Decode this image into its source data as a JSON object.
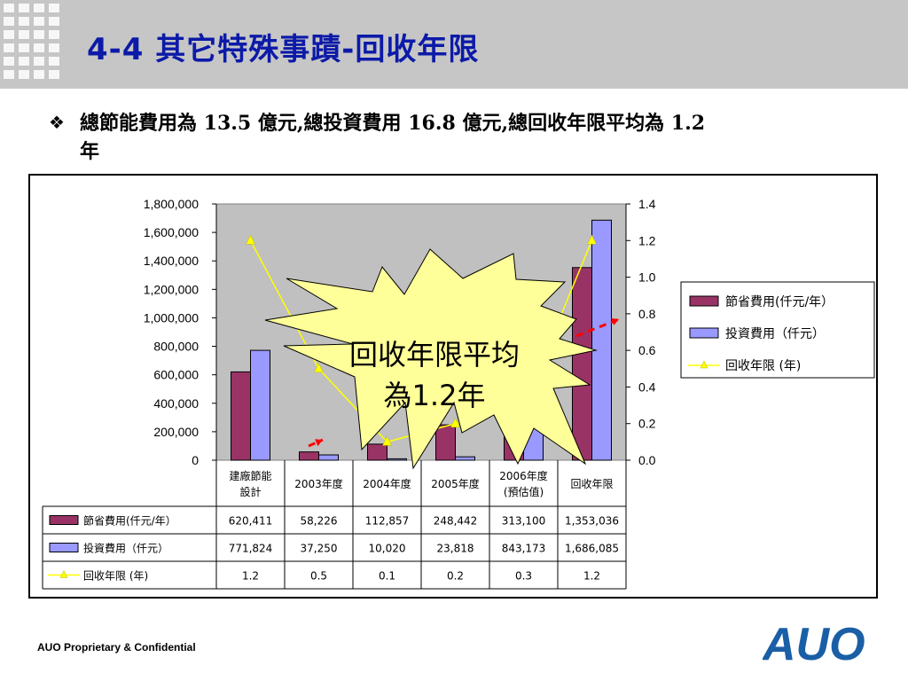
{
  "slide": {
    "title": "4-4 其它特殊事蹟-回收年限",
    "bullet_glyph": "❖",
    "bullet_line1": "總節能費用為 13.5 億元,總投資費用 16.8 億元,總回收年限平均為 1.2",
    "bullet_line2": "年",
    "footer": "AUO Proprietary & Confidential",
    "logo_text": "AUO"
  },
  "callout": {
    "line1": "回收年限平均",
    "line2": "為1.2年"
  },
  "colors": {
    "title": "#0c1aa8",
    "savings_bar": "#993366",
    "investment_bar": "#9999ff",
    "payback_line": "#ffff00",
    "plot_bg": "#c0c0c0",
    "starburst": "#ffff99",
    "logo": "#1a5fa6",
    "dashed_arrow": "#ff0000"
  },
  "chart_data": {
    "type": "bar",
    "categories": [
      [
        "建廠節能",
        "設計"
      ],
      [
        "2003年度"
      ],
      [
        "2004年度"
      ],
      [
        "2005年度"
      ],
      [
        "2006年度",
        "(預估值)"
      ],
      [
        "回收年限"
      ]
    ],
    "series": [
      {
        "name": "節省費用(仟元/年）",
        "values": [
          620411,
          58226,
          112857,
          248442,
          313100,
          1353036
        ],
        "axis": "left",
        "kind": "bar"
      },
      {
        "name": "投資費用（仟元）",
        "values": [
          771824,
          37250,
          10020,
          23818,
          843173,
          1686085
        ],
        "axis": "left",
        "kind": "bar"
      },
      {
        "name": "回收年限 (年)",
        "values": [
          1.2,
          0.5,
          0.1,
          0.2,
          0.3,
          1.2
        ],
        "axis": "right",
        "kind": "line"
      }
    ],
    "table_values": [
      [
        "620,411",
        "58,226",
        "112,857",
        "248,442",
        "313,100",
        "1,353,036"
      ],
      [
        "771,824",
        "37,250",
        "10,020",
        "23,818",
        "843,173",
        "1,686,085"
      ],
      [
        "1.2",
        "0.5",
        "0.1",
        "0.2",
        "0.3",
        "1.2"
      ]
    ],
    "y_left": {
      "min": 0,
      "max": 1800000,
      "ticks": [
        "0",
        "200,000",
        "400,000",
        "600,000",
        "800,000",
        "1,000,000",
        "1,200,000",
        "1,400,000",
        "1,600,000",
        "1,800,000"
      ]
    },
    "y_right": {
      "min": 0,
      "max": 1.4,
      "ticks": [
        "0.0",
        "0.2",
        "0.4",
        "0.6",
        "0.8",
        "1.0",
        "1.2",
        "1.4"
      ]
    },
    "legend_position": "right",
    "grid": false
  }
}
